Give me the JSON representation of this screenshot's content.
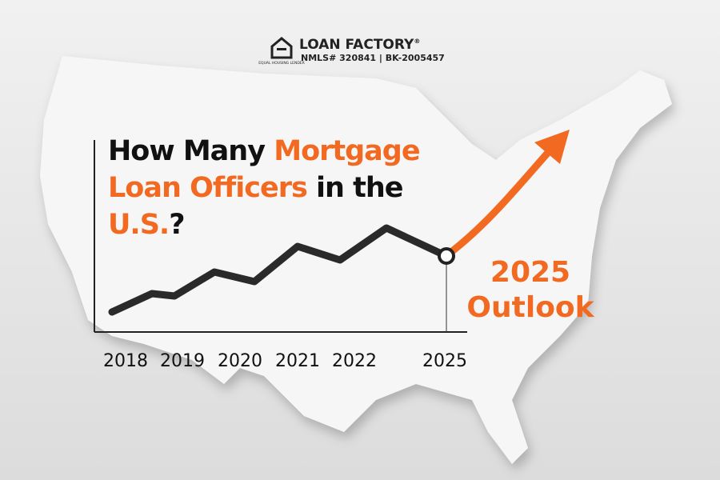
{
  "logo": {
    "badge": "EQUAL HOUSING LENDER",
    "name": "LOAN FACTORY",
    "mark": "®",
    "license": "NMLS# 320841 | BK-2005457"
  },
  "title": [
    [
      {
        "text": "How Many ",
        "color": "#111111"
      },
      {
        "text": "Mortgage",
        "color": "#f26a21"
      }
    ],
    [
      {
        "text": "Loan Officers",
        "color": "#f26a21"
      },
      {
        "text": " in the",
        "color": "#111111"
      }
    ],
    [
      {
        "text": "U.S.",
        "color": "#f26a21"
      },
      {
        "text": "?",
        "color": "#111111"
      }
    ]
  ],
  "years": [
    "2018",
    "2019",
    "2020",
    "2021",
    "2022",
    "2025"
  ],
  "outlook": [
    "2025",
    "Outlook"
  ]
}
